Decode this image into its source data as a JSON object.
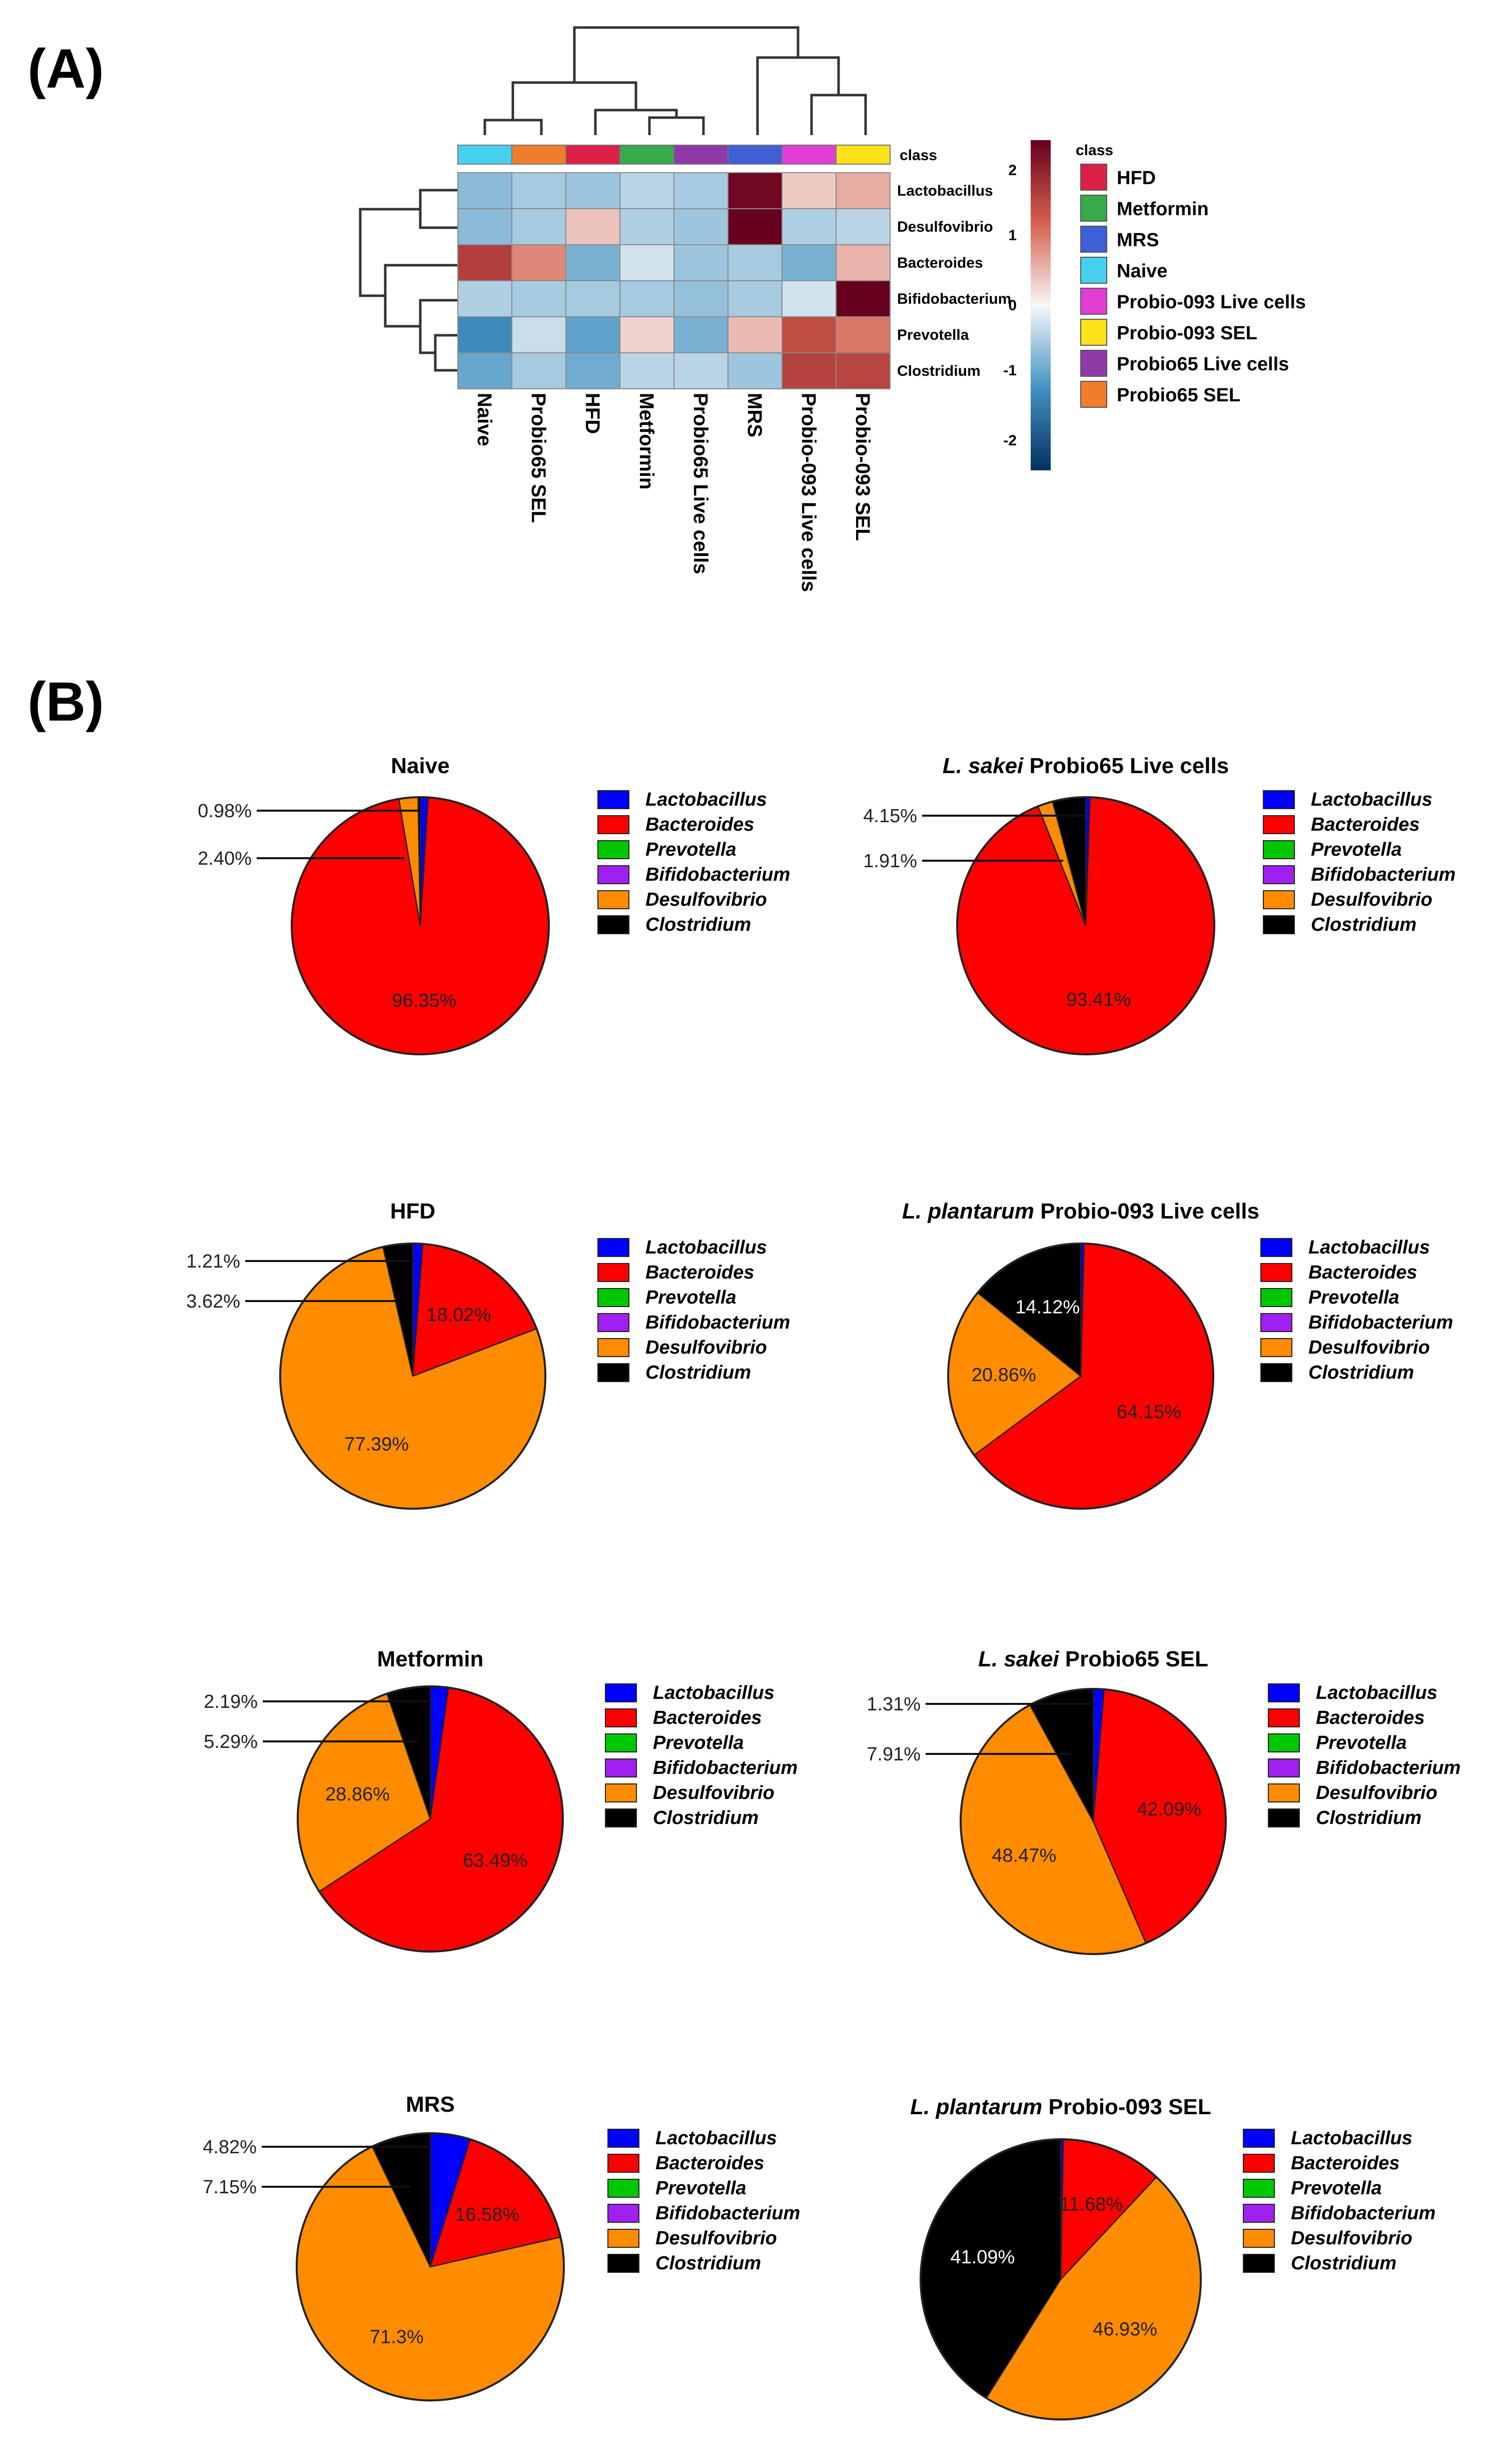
{
  "panel_labels": [
    "(A)",
    "(B)"
  ],
  "heatmap": {
    "class_header": "class",
    "columns": [
      "Naive",
      "Probio65 SEL",
      "HFD",
      "Metformin",
      "Probio65 Live cells",
      "MRS",
      "Probio-093 Live cells",
      "Probio-093 SEL"
    ],
    "column_colors": [
      "#45d1ee",
      "#f07d2a",
      "#dc2048",
      "#37ab4a",
      "#8e3ba9",
      "#3f5fd6",
      "#e23ed6",
      "#ffe11a"
    ],
    "rows": [
      "Lactobacillus",
      "Desulfovibrio",
      "Bacteroides",
      "Bifidobacterium",
      "Prevotella",
      "Clostridium"
    ],
    "values": [
      [
        -0.6,
        -0.45,
        -0.5,
        -0.35,
        -0.45,
        2.2,
        0.3,
        0.5
      ],
      [
        -0.6,
        -0.45,
        0.35,
        -0.4,
        -0.5,
        2.3,
        -0.4,
        -0.35
      ],
      [
        1.45,
        0.75,
        -0.7,
        -0.2,
        -0.5,
        -0.45,
        -0.7,
        0.45
      ],
      [
        -0.4,
        -0.45,
        -0.45,
        -0.45,
        -0.55,
        -0.45,
        -0.2,
        2.45
      ],
      [
        -1.1,
        -0.25,
        -0.85,
        0.25,
        -0.7,
        0.4,
        1.25,
        0.85
      ],
      [
        -0.8,
        -0.45,
        -0.75,
        -0.35,
        -0.35,
        -0.5,
        1.4,
        1.35
      ]
    ],
    "color_scale": {
      "min": -2,
      "max": 2,
      "ticks": [
        "2",
        "1",
        "0",
        "-1",
        "-2"
      ],
      "low": "#24528d",
      "mid": "#f4f4f4",
      "high": "#8b0a24"
    },
    "legend_title": "class",
    "legend": [
      {
        "label": "HFD",
        "color": "#dc2048"
      },
      {
        "label": "Metformin",
        "color": "#37ab4a"
      },
      {
        "label": "MRS",
        "color": "#3f5fd6"
      },
      {
        "label": "Naive",
        "color": "#45d1ee"
      },
      {
        "label": "Probio-093 Live cells",
        "color": "#e23ed6"
      },
      {
        "label": "Probio-093 SEL",
        "color": "#ffe11a"
      },
      {
        "label": "Probio65 Live cells",
        "color": "#8e3ba9"
      },
      {
        "label": "Probio65 SEL",
        "color": "#f07d2a"
      }
    ]
  },
  "pie_legend": [
    {
      "label": "Lactobacillus",
      "color": "#0000ff"
    },
    {
      "label": "Bacteroides",
      "color": "#ff0000"
    },
    {
      "label": "Prevotella",
      "color": "#00c800"
    },
    {
      "label": "Bifidobacterium",
      "color": "#a020f0"
    },
    {
      "label": "Desulfovibrio",
      "color": "#ff8c00"
    },
    {
      "label": "Clostridium",
      "color": "#000000"
    }
  ],
  "chart_data": [
    {
      "type": "heatmap",
      "title": "",
      "columns": [
        "Naive",
        "Probio65 SEL",
        "HFD",
        "Metformin",
        "Probio65 Live cells",
        "MRS",
        "Probio-093 Live cells",
        "Probio-093 SEL"
      ],
      "rows": [
        "Lactobacillus",
        "Desulfovibrio",
        "Bacteroides",
        "Bifidobacterium",
        "Prevotella",
        "Clostridium"
      ],
      "scale": [
        -2,
        2
      ]
    },
    {
      "type": "pie",
      "title": "Naive",
      "labels": [
        "Lactobacillus",
        "Bacteroides",
        "Prevotella",
        "Bifidobacterium",
        "Desulfovibrio",
        "Clostridium"
      ],
      "values": [
        0.98,
        96.35,
        0,
        0,
        2.4,
        0.27
      ],
      "shown": [
        "0.98%",
        "96.35%",
        "",
        "",
        "2.40%",
        ""
      ]
    },
    {
      "type": "pie",
      "title_prefix": "L. sakei",
      "title": "Probio65 Live cells",
      "labels": [
        "Lactobacillus",
        "Bacteroides",
        "Prevotella",
        "Bifidobacterium",
        "Desulfovibrio",
        "Clostridium"
      ],
      "values": [
        0.53,
        93.41,
        0,
        0,
        1.91,
        4.15
      ],
      "shown": [
        "",
        "93.41%",
        "",
        "",
        "1.91%",
        "4.15%"
      ]
    },
    {
      "type": "pie",
      "title": "HFD",
      "labels": [
        "Lactobacillus",
        "Bacteroides",
        "Prevotella",
        "Bifidobacterium",
        "Desulfovibrio",
        "Clostridium"
      ],
      "values": [
        1.21,
        18.02,
        0,
        0,
        77.39,
        3.62
      ],
      "shown": [
        "1.21%",
        "18.02%",
        "",
        "",
        "77.39%",
        "3.62%"
      ]
    },
    {
      "type": "pie",
      "title_prefix": "L. plantarum",
      "title": "Probio-093 Live cells",
      "labels": [
        "Lactobacillus",
        "Bacteroides",
        "Prevotella",
        "Bifidobacterium",
        "Desulfovibrio",
        "Clostridium"
      ],
      "values": [
        0.4,
        64.15,
        0,
        0,
        20.86,
        14.12
      ],
      "shown": [
        "",
        "64.15%",
        "",
        "",
        "20.86%",
        "14.12%"
      ]
    },
    {
      "type": "pie",
      "title": "Metformin",
      "labels": [
        "Lactobacillus",
        "Bacteroides",
        "Prevotella",
        "Bifidobacterium",
        "Desulfovibrio",
        "Clostridium"
      ],
      "values": [
        2.19,
        63.49,
        0,
        0,
        28.86,
        5.29
      ],
      "shown": [
        "2.19%",
        "63.49%",
        "",
        "",
        "28.86%",
        "5.29%"
      ]
    },
    {
      "type": "pie",
      "title_prefix": "L. sakei",
      "title": "Probio65 SEL",
      "labels": [
        "Lactobacillus",
        "Bacteroides",
        "Prevotella",
        "Bifidobacterium",
        "Desulfovibrio",
        "Clostridium"
      ],
      "values": [
        1.31,
        42.09,
        0,
        0,
        48.47,
        7.91
      ],
      "shown": [
        "1.31%",
        "42.09%",
        "",
        "",
        "48.47%",
        "7.91%"
      ]
    },
    {
      "type": "pie",
      "title": "MRS",
      "labels": [
        "Lactobacillus",
        "Bacteroides",
        "Prevotella",
        "Bifidobacterium",
        "Desulfovibrio",
        "Clostridium"
      ],
      "values": [
        4.82,
        16.58,
        0,
        0,
        71.3,
        7.15
      ],
      "shown": [
        "4.82%",
        "16.58%",
        "",
        "",
        "71.3%",
        "7.15%"
      ]
    },
    {
      "type": "pie",
      "title_prefix": "L. plantarum",
      "title": "Probio-093 SEL",
      "labels": [
        "Lactobacillus",
        "Bacteroides",
        "Prevotella",
        "Bifidobacterium",
        "Desulfovibrio",
        "Clostridium"
      ],
      "values": [
        0.3,
        11.68,
        0,
        0,
        46.93,
        41.09
      ],
      "shown": [
        "",
        "11.68%",
        "",
        "",
        "46.93%",
        "41.09%"
      ]
    }
  ]
}
